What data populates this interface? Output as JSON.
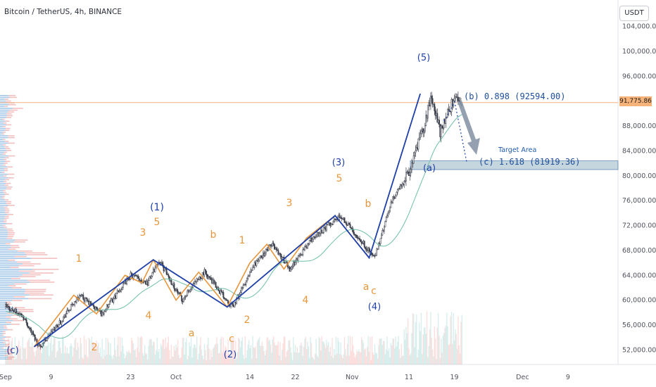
{
  "header": {
    "symbol_title": "Bitcoin / TetherUS, 4h, BINANCE",
    "currency": "USDT"
  },
  "price_axis": {
    "last_price": "91,775.86",
    "ticks": [
      "104,000.00",
      "100,000.00",
      "96,000.00",
      "88,000.00",
      "84,000.00",
      "80,000.00",
      "76,000.00",
      "72,000.00",
      "68,000.00",
      "64,000.00",
      "60,000.00",
      "56,000.00",
      "52,000.00"
    ]
  },
  "time_axis": {
    "ticks": [
      "Sep",
      "9",
      "23",
      "Oct",
      "14",
      "22",
      "Nov",
      "11",
      "19",
      "Dec",
      "9"
    ]
  },
  "annotations": {
    "target_area": "Target Area",
    "fib_b": "(b) 0.898 (92594.00)",
    "fib_c": "(c) 1.618 (81919.36)"
  },
  "wave_labels": [
    {
      "text": "(c)",
      "color": "blue"
    },
    {
      "text": "1",
      "color": "orange"
    },
    {
      "text": "2",
      "color": "orange"
    },
    {
      "text": "3",
      "color": "orange"
    },
    {
      "text": "4",
      "color": "orange"
    },
    {
      "text": "5",
      "color": "orange"
    },
    {
      "text": "(1)",
      "color": "blue"
    },
    {
      "text": "a",
      "color": "orange"
    },
    {
      "text": "b",
      "color": "orange"
    },
    {
      "text": "c",
      "color": "orange"
    },
    {
      "text": "(2)",
      "color": "blue"
    },
    {
      "text": "1",
      "color": "orange"
    },
    {
      "text": "2",
      "color": "orange"
    },
    {
      "text": "3",
      "color": "orange"
    },
    {
      "text": "4",
      "color": "orange"
    },
    {
      "text": "5",
      "color": "orange"
    },
    {
      "text": "(3)",
      "color": "blue"
    },
    {
      "text": "a",
      "color": "orange"
    },
    {
      "text": "b",
      "color": "orange"
    },
    {
      "text": "c",
      "color": "orange"
    },
    {
      "text": "(4)",
      "color": "blue"
    },
    {
      "text": "(5)",
      "color": "blue"
    },
    {
      "text": "(a)",
      "color": "blue"
    }
  ],
  "colors": {
    "up": "#26a69a",
    "down": "#ef5350",
    "candle": "#3b3f4b",
    "wave_blue": "#1e3fa8",
    "wave_orange": "#e8963c",
    "target_box": "#b7cdd6",
    "ma_line": "#6fbfa8"
  },
  "chart_data": {
    "type": "candlestick",
    "ylim": [
      50000,
      106000
    ],
    "grid": false,
    "blue_wave_path": [
      {
        "t": "Sep 6",
        "p": 52500
      },
      {
        "t": "Sep 27",
        "p": 66500
      },
      {
        "t": "Oct 10",
        "p": 58900
      },
      {
        "t": "Oct 29",
        "p": 73600
      },
      {
        "t": "Nov 4",
        "p": 66800
      },
      {
        "t": "Nov 13",
        "p": 93200
      }
    ],
    "orange_wave_path": [
      {
        "t": "Sep 6",
        "p": 52500
      },
      {
        "t": "Sep 13",
        "p": 60800
      },
      {
        "t": "Sep 17",
        "p": 57800
      },
      {
        "t": "Sep 22",
        "p": 64000
      },
      {
        "t": "Sep 25",
        "p": 62800
      },
      {
        "t": "Sep 27",
        "p": 66500
      },
      {
        "t": "Oct 1",
        "p": 60000
      },
      {
        "t": "Oct 5",
        "p": 64500
      },
      {
        "t": "Oct 10",
        "p": 58900
      },
      {
        "t": "Oct 14",
        "p": 66000
      },
      {
        "t": "Oct 17",
        "p": 69000
      },
      {
        "t": "Oct 20",
        "p": 65000
      },
      {
        "t": "Oct 24",
        "p": 70000
      },
      {
        "t": "Oct 29",
        "p": 73600
      },
      {
        "t": "Nov 4",
        "p": 66800
      }
    ],
    "target_zone": [
      81000,
      82400
    ]
  }
}
